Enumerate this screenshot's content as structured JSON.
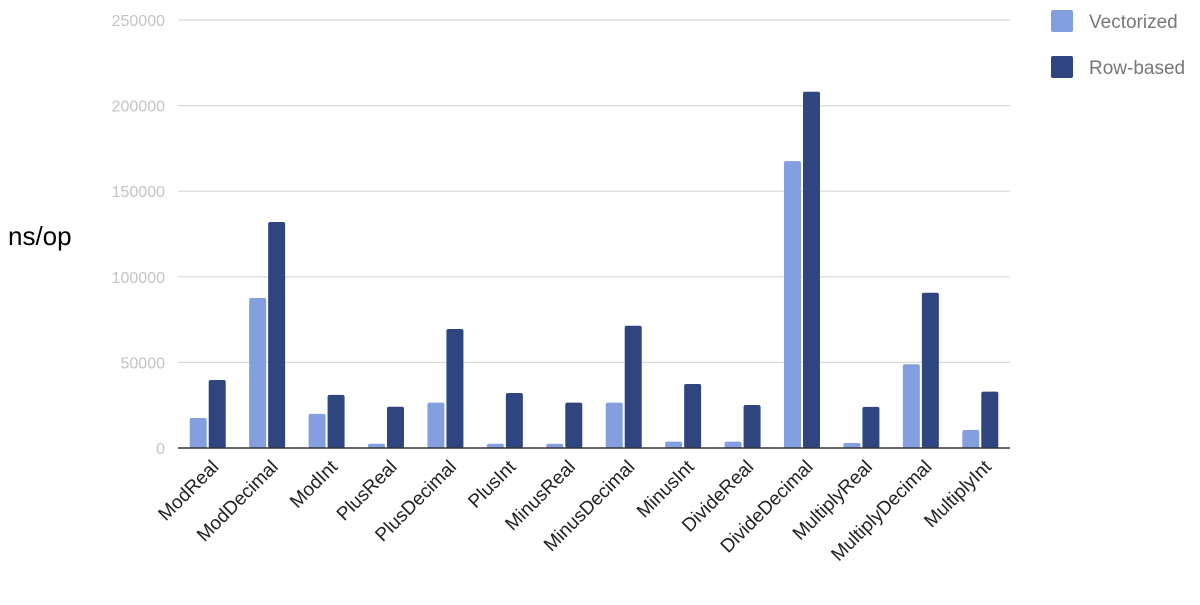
{
  "chart_data": {
    "type": "bar",
    "title": "",
    "xlabel": "",
    "ylabel": "ns/op",
    "ylim": [
      0,
      250000
    ],
    "yticks": [
      0,
      50000,
      100000,
      150000,
      200000,
      250000
    ],
    "grid": true,
    "legend_position": "top-right",
    "categories": [
      "ModReal",
      "ModDecimal",
      "ModInt",
      "PlusReal",
      "PlusDecimal",
      "PlusInt",
      "MinusReal",
      "MinusDecimal",
      "MinusInt",
      "DivideReal",
      "DivideDecimal",
      "MultiplyReal",
      "MultiplyDecimal",
      "MultiplyInt"
    ],
    "series": [
      {
        "name": "Vectorized",
        "color": "#839fe0",
        "values": [
          17500,
          87600,
          19900,
          2500,
          26500,
          2500,
          2500,
          26500,
          3700,
          3700,
          167600,
          2900,
          48900,
          10500
        ]
      },
      {
        "name": "Row-based",
        "color": "#2e457f",
        "values": [
          39700,
          132000,
          31000,
          24100,
          69500,
          32100,
          26500,
          71400,
          37400,
          25100,
          208100,
          24000,
          90700,
          32900
        ]
      }
    ]
  }
}
